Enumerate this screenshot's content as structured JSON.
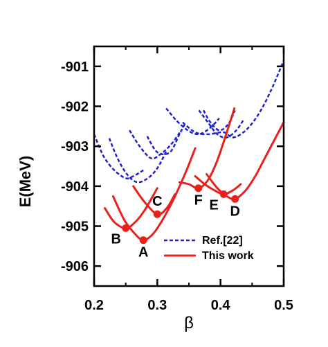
{
  "chart_data": {
    "type": "line",
    "xlabel": "β",
    "ylabel": "E(MeV)",
    "xlim": [
      0.2,
      0.5
    ],
    "ylim": [
      -906.5,
      -900.5
    ],
    "xticks": [
      0.2,
      0.3,
      0.4,
      0.5
    ],
    "xtick_labels": [
      "0.2",
      "0.3",
      "0.4",
      "0.5"
    ],
    "yticks": [
      -906,
      -905,
      -904,
      -903,
      -902,
      -901
    ],
    "ytick_labels": [
      "-906",
      "-905",
      "-904",
      "-903",
      "-902",
      "-901"
    ],
    "grid": false,
    "legend_position": "bottom-right",
    "colors": {
      "ref": "#1f1fd0",
      "this_work": "#e8211c"
    },
    "series": [
      {
        "name": "Ref.[22]",
        "style": "dashed",
        "color": "#1f1fd0",
        "segments": [
          [
            [
              0.2,
              -902.7
            ],
            [
              0.215,
              -903.25
            ],
            [
              0.232,
              -903.6
            ],
            [
              0.25,
              -903.8
            ],
            [
              0.262,
              -903.75
            ],
            [
              0.278,
              -903.6
            ]
          ],
          [
            [
              0.224,
              -902.8
            ],
            [
              0.237,
              -903.3
            ],
            [
              0.252,
              -903.7
            ],
            [
              0.268,
              -903.9
            ],
            [
              0.285,
              -903.8
            ],
            [
              0.3,
              -903.55
            ],
            [
              0.315,
              -903.1
            ]
          ],
          [
            [
              0.256,
              -902.6
            ],
            [
              0.272,
              -903.0
            ],
            [
              0.29,
              -903.3
            ],
            [
              0.305,
              -903.2
            ],
            [
              0.322,
              -902.95
            ],
            [
              0.338,
              -902.6
            ]
          ],
          [
            [
              0.284,
              -902.75
            ],
            [
              0.3,
              -903.15
            ],
            [
              0.32,
              -903.15
            ],
            [
              0.335,
              -902.7
            ],
            [
              0.345,
              -902.4
            ]
          ],
          [
            [
              0.314,
              -902.05
            ],
            [
              0.33,
              -902.35
            ],
            [
              0.348,
              -902.6
            ],
            [
              0.365,
              -902.7
            ],
            [
              0.383,
              -902.55
            ],
            [
              0.398,
              -902.3
            ]
          ],
          [
            [
              0.373,
              -902.1
            ],
            [
              0.384,
              -902.4
            ],
            [
              0.398,
              -902.6
            ],
            [
              0.412,
              -902.45
            ],
            [
              0.423,
              -902.1
            ]
          ],
          [
            [
              0.34,
              -902.4
            ],
            [
              0.36,
              -902.65
            ],
            [
              0.38,
              -902.7
            ],
            [
              0.405,
              -902.65
            ],
            [
              0.42,
              -902.78
            ],
            [
              0.44,
              -902.6
            ],
            [
              0.46,
              -902.2
            ],
            [
              0.48,
              -901.6
            ],
            [
              0.5,
              -900.85
            ]
          ],
          [
            [
              0.366,
              -902.1
            ],
            [
              0.38,
              -902.4
            ],
            [
              0.395,
              -902.7
            ],
            [
              0.41,
              -902.78
            ],
            [
              0.425,
              -902.6
            ],
            [
              0.436,
              -902.35
            ]
          ]
        ]
      },
      {
        "name": "This work",
        "style": "solid",
        "color": "#e8211c",
        "segments": [
          [
            [
              0.217,
              -904.55
            ],
            [
              0.232,
              -904.9
            ],
            [
              0.25,
              -905.05
            ],
            [
              0.265,
              -904.9
            ],
            [
              0.28,
              -904.6
            ],
            [
              0.3,
              -904.05
            ]
          ],
          [
            [
              0.23,
              -904.25
            ],
            [
              0.248,
              -904.85
            ],
            [
              0.265,
              -905.2
            ],
            [
              0.278,
              -905.35
            ],
            [
              0.293,
              -905.2
            ],
            [
              0.308,
              -904.85
            ],
            [
              0.325,
              -904.35
            ],
            [
              0.345,
              -903.65
            ],
            [
              0.36,
              -903.05
            ]
          ],
          [
            [
              0.262,
              -904.0
            ],
            [
              0.28,
              -904.4
            ],
            [
              0.3,
              -904.7
            ],
            [
              0.315,
              -904.55
            ],
            [
              0.328,
              -904.2
            ]
          ],
          [
            [
              0.335,
              -903.9
            ],
            [
              0.35,
              -903.95
            ],
            [
              0.365,
              -904.05
            ],
            [
              0.38,
              -903.85
            ],
            [
              0.395,
              -903.35
            ],
            [
              0.412,
              -902.55
            ],
            [
              0.422,
              -902.05
            ]
          ],
          [
            [
              0.36,
              -903.75
            ],
            [
              0.375,
              -903.95
            ],
            [
              0.39,
              -904.1
            ],
            [
              0.405,
              -904.2
            ],
            [
              0.42,
              -904.1
            ],
            [
              0.432,
              -903.95
            ]
          ],
          [
            [
              0.378,
              -903.7
            ],
            [
              0.395,
              -904.05
            ],
            [
              0.41,
              -904.25
            ],
            [
              0.423,
              -904.32
            ],
            [
              0.44,
              -904.1
            ],
            [
              0.455,
              -903.75
            ],
            [
              0.47,
              -903.3
            ],
            [
              0.485,
              -902.85
            ],
            [
              0.5,
              -902.4
            ]
          ]
        ]
      }
    ],
    "points": [
      {
        "label": "A",
        "x": 0.278,
        "y": -905.35,
        "label_pos": "below"
      },
      {
        "label": "B",
        "x": 0.25,
        "y": -905.05,
        "label_pos": "below-left"
      },
      {
        "label": "C",
        "x": 0.3,
        "y": -904.7,
        "label_pos": "above"
      },
      {
        "label": "D",
        "x": 0.423,
        "y": -904.32,
        "label_pos": "below"
      },
      {
        "label": "E",
        "x": 0.405,
        "y": -904.2,
        "label_pos": "below-left"
      },
      {
        "label": "F",
        "x": 0.365,
        "y": -904.05,
        "label_pos": "below"
      }
    ]
  }
}
